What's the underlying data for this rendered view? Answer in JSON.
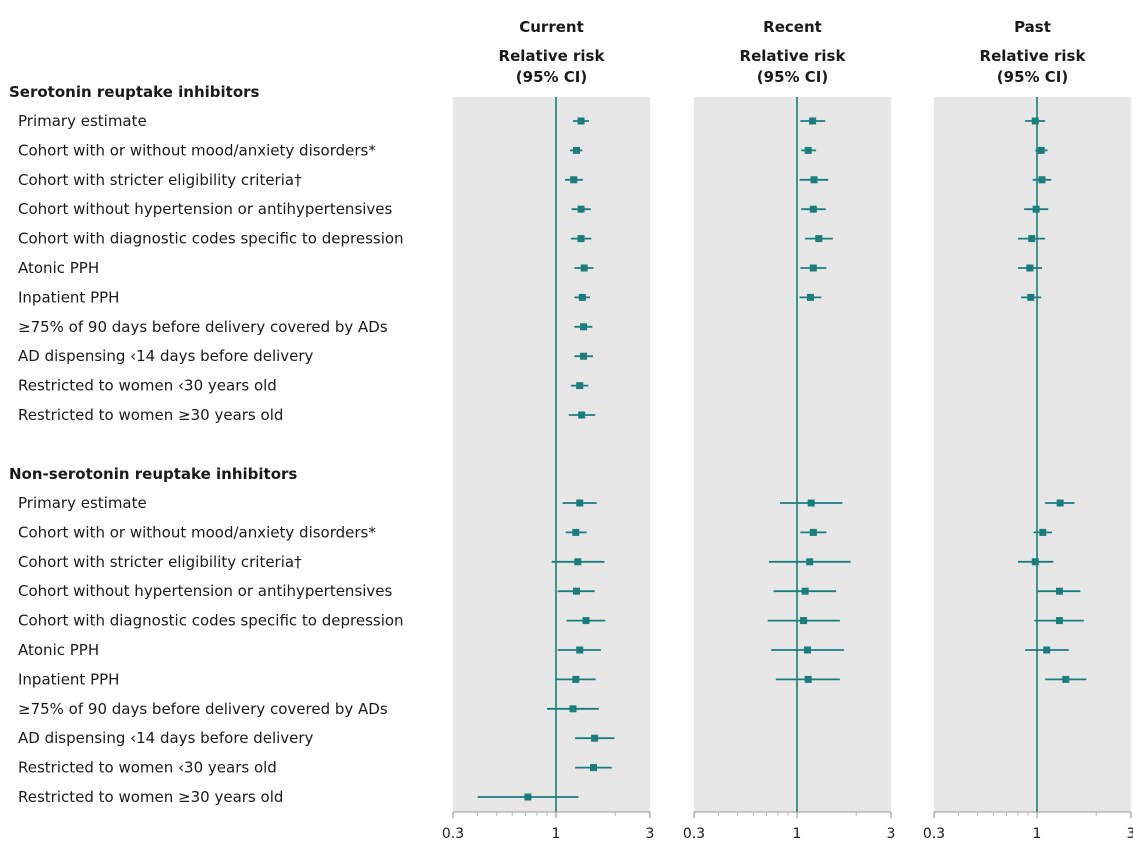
{
  "chart_data": {
    "type": "forest",
    "panels": [
      {
        "title": "Current",
        "subtitle_line1": "Relative risk",
        "subtitle_line2": "(95% CI)"
      },
      {
        "title": "Recent",
        "subtitle_line1": "Relative risk",
        "subtitle_line2": "(95% CI)"
      },
      {
        "title": "Past",
        "subtitle_line1": "Relative risk",
        "subtitle_line2": "(95% CI)"
      }
    ],
    "x_axis": {
      "scale": "log",
      "range": [
        0.3,
        3
      ],
      "ticks": [
        0.3,
        1,
        3
      ],
      "tick_labels": [
        "0.3",
        "1",
        "3"
      ],
      "reference": 1
    },
    "groups": [
      {
        "title": "Serotonin reuptake inhibitors",
        "rows": [
          {
            "label": "Primary estimate",
            "current": [
              1.34,
              1.22,
              1.47
            ],
            "recent": [
              1.2,
              1.04,
              1.39
            ],
            "past": [
              0.98,
              0.87,
              1.1
            ]
          },
          {
            "label": "Cohort with or without mood/anxiety disorders*",
            "current": [
              1.27,
              1.18,
              1.36
            ],
            "recent": [
              1.14,
              1.05,
              1.25
            ],
            "past": [
              1.05,
              0.98,
              1.13
            ]
          },
          {
            "label": "Cohort with stricter eligibility criteria†",
            "current": [
              1.23,
              1.11,
              1.37
            ],
            "recent": [
              1.22,
              1.03,
              1.44
            ],
            "past": [
              1.06,
              0.95,
              1.18
            ]
          },
          {
            "label": "Cohort without hypertension or antihypertensives",
            "current": [
              1.34,
              1.2,
              1.5
            ],
            "recent": [
              1.21,
              1.05,
              1.4
            ],
            "past": [
              0.99,
              0.86,
              1.14
            ]
          },
          {
            "label": "Cohort with diagnostic codes specific to depression",
            "current": [
              1.34,
              1.19,
              1.51
            ],
            "recent": [
              1.29,
              1.1,
              1.52
            ],
            "past": [
              0.94,
              0.8,
              1.1
            ]
          },
          {
            "label": "Atonic PPH",
            "current": [
              1.39,
              1.24,
              1.55
            ],
            "recent": [
              1.21,
              1.04,
              1.41
            ],
            "past": [
              0.92,
              0.8,
              1.06
            ]
          },
          {
            "label": "Inpatient PPH",
            "current": [
              1.36,
              1.24,
              1.49
            ],
            "recent": [
              1.17,
              1.03,
              1.33
            ],
            "past": [
              0.93,
              0.83,
              1.05
            ]
          },
          {
            "label": "≥75% of 90 days before delivery covered by ADs",
            "current": [
              1.38,
              1.24,
              1.53
            ]
          },
          {
            "label": "AD dispensing ‹14 days before delivery",
            "current": [
              1.38,
              1.24,
              1.54
            ]
          },
          {
            "label": "Restricted to women ‹30 years old",
            "current": [
              1.32,
              1.19,
              1.46
            ]
          },
          {
            "label": "Restricted to women ≥30 years old",
            "current": [
              1.35,
              1.16,
              1.58
            ]
          }
        ]
      },
      {
        "title": "Non-serotonin reuptake inhibitors",
        "rows": [
          {
            "label": "Primary estimate",
            "current": [
              1.32,
              1.08,
              1.61
            ],
            "recent": [
              1.18,
              0.82,
              1.7
            ],
            "past": [
              1.31,
              1.1,
              1.55
            ]
          },
          {
            "label": "Cohort with or without mood/anxiety disorders*",
            "current": [
              1.26,
              1.12,
              1.43
            ],
            "recent": [
              1.21,
              1.04,
              1.41
            ],
            "past": [
              1.07,
              0.96,
              1.19
            ]
          },
          {
            "label": "Cohort with stricter eligibility criteria†",
            "current": [
              1.29,
              0.95,
              1.76
            ],
            "recent": [
              1.16,
              0.72,
              1.87
            ],
            "past": [
              0.98,
              0.8,
              1.21
            ]
          },
          {
            "label": "Cohort without hypertension or antihypertensives",
            "current": [
              1.27,
              1.02,
              1.57
            ],
            "recent": [
              1.1,
              0.76,
              1.58
            ],
            "past": [
              1.3,
              1.01,
              1.66
            ]
          },
          {
            "label": "Cohort with diagnostic codes specific to depression",
            "current": [
              1.42,
              1.13,
              1.78
            ],
            "recent": [
              1.08,
              0.71,
              1.65
            ],
            "past": [
              1.3,
              0.97,
              1.73
            ]
          },
          {
            "label": "Atonic PPH",
            "current": [
              1.32,
              1.02,
              1.69
            ],
            "recent": [
              1.13,
              0.74,
              1.73
            ],
            "past": [
              1.12,
              0.87,
              1.45
            ]
          },
          {
            "label": "Inpatient PPH",
            "current": [
              1.26,
              0.99,
              1.59
            ],
            "recent": [
              1.14,
              0.78,
              1.65
            ],
            "past": [
              1.4,
              1.1,
              1.78
            ]
          },
          {
            "label": "≥75% of 90 days before delivery covered by ADs",
            "current": [
              1.22,
              0.9,
              1.65
            ]
          },
          {
            "label": "AD dispensing ‹14 days before delivery",
            "current": [
              1.57,
              1.25,
              1.98
            ]
          },
          {
            "label": "Restricted to women ‹30 years old",
            "current": [
              1.55,
              1.25,
              1.92
            ]
          },
          {
            "label": "Restricted to women ≥30 years old",
            "current": [
              0.72,
              0.4,
              1.3
            ]
          }
        ]
      }
    ],
    "colors": {
      "marker": "#1a7d7d",
      "panel_bg": "#e6e6e6",
      "ref_line": "#1a7d7d",
      "text": "#1a1a1a"
    }
  }
}
